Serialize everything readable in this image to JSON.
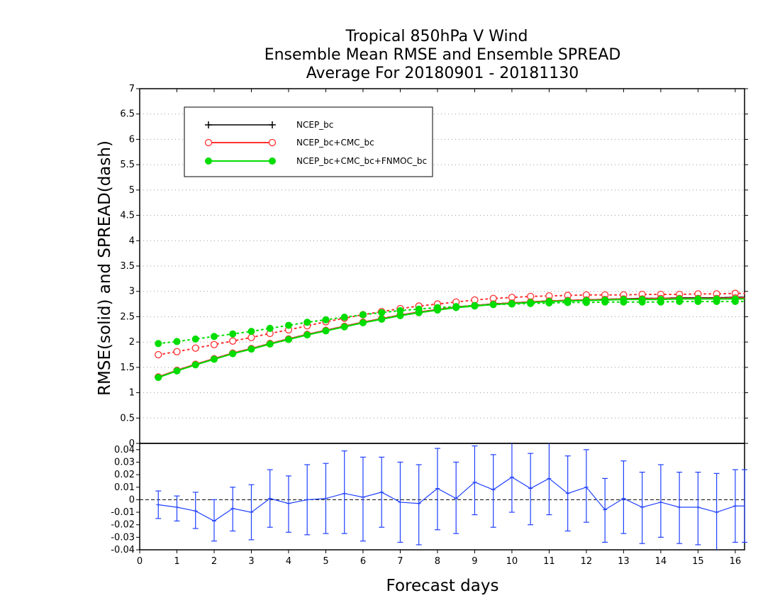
{
  "chart_data": [
    {
      "type": "line",
      "title_lines": [
        "Tropical 850hPa V Wind",
        "Ensemble Mean RMSE and Ensemble SPREAD",
        "Average For 20180901 - 20181130"
      ],
      "ylabel": "RMSE(solid)  and  SPREAD(dash)",
      "xlabel": "Forecast days",
      "xlim": [
        0,
        16.25
      ],
      "ylim": [
        0,
        7
      ],
      "x_ticks": [
        0,
        1,
        2,
        3,
        4,
        5,
        6,
        7,
        8,
        9,
        10,
        11,
        12,
        13,
        14,
        15,
        16
      ],
      "y_ticks": [
        0,
        0.5,
        1,
        1.5,
        2,
        2.5,
        3,
        3.5,
        4,
        4.5,
        5,
        5.5,
        6,
        6.5,
        7
      ],
      "y_tick_labels": [
        "0",
        "0.5",
        "1",
        "1.5",
        "2",
        "2.5",
        "3",
        "3.5",
        "4",
        "4.5",
        "5",
        "5.5",
        "6",
        "6.5",
        "7"
      ],
      "grid": true,
      "legend_position": "top-left",
      "x": [
        0.5,
        1,
        1.5,
        2,
        2.5,
        3,
        3.5,
        4,
        4.5,
        5,
        5.5,
        6,
        6.5,
        7,
        7.5,
        8,
        8.5,
        9,
        9.5,
        10,
        10.5,
        11,
        11.5,
        12,
        12.5,
        13,
        13.5,
        14,
        14.5,
        15,
        15.5,
        16,
        16.25
      ],
      "series": [
        {
          "name": "NCEP_bc",
          "color": "#000000",
          "marker": "plus",
          "rmse": [
            1.31,
            1.44,
            1.56,
            1.67,
            1.78,
            1.87,
            1.97,
            2.06,
            2.15,
            2.23,
            2.31,
            2.39,
            2.46,
            2.53,
            2.59,
            2.64,
            2.69,
            2.72,
            2.75,
            2.77,
            2.79,
            2.81,
            2.82,
            2.83,
            2.84,
            2.85,
            2.86,
            2.86,
            2.87,
            2.87,
            2.87,
            2.88,
            2.88
          ],
          "spread": [
            1.31,
            1.44,
            1.56,
            1.67,
            1.78,
            1.87,
            1.97,
            2.06,
            2.15,
            2.23,
            2.31,
            2.39,
            2.46,
            2.53,
            2.59,
            2.64,
            2.69,
            2.72,
            2.75,
            2.77,
            2.79,
            2.81,
            2.82,
            2.83,
            2.84,
            2.85,
            2.86,
            2.86,
            2.87,
            2.87,
            2.87,
            2.88,
            2.88
          ]
        },
        {
          "name": "NCEP_bc+CMC_bc",
          "color": "#ff3030",
          "marker": "open-circle",
          "rmse": [
            1.31,
            1.44,
            1.56,
            1.67,
            1.78,
            1.87,
            1.97,
            2.06,
            2.15,
            2.23,
            2.31,
            2.39,
            2.46,
            2.53,
            2.59,
            2.64,
            2.69,
            2.72,
            2.75,
            2.77,
            2.79,
            2.81,
            2.82,
            2.83,
            2.84,
            2.85,
            2.85,
            2.86,
            2.86,
            2.86,
            2.86,
            2.87,
            2.87
          ],
          "spread": [
            1.75,
            1.81,
            1.88,
            1.95,
            2.02,
            2.09,
            2.17,
            2.24,
            2.32,
            2.4,
            2.47,
            2.54,
            2.6,
            2.66,
            2.71,
            2.75,
            2.79,
            2.83,
            2.86,
            2.88,
            2.9,
            2.91,
            2.92,
            2.93,
            2.93,
            2.93,
            2.94,
            2.94,
            2.94,
            2.95,
            2.95,
            2.96,
            2.96
          ]
        },
        {
          "name": "NCEP_bc+CMC_bc+FNMOC_bc",
          "color": "#00dd00",
          "marker": "filled-circle",
          "rmse": [
            1.3,
            1.43,
            1.55,
            1.66,
            1.77,
            1.86,
            1.96,
            2.05,
            2.14,
            2.22,
            2.3,
            2.38,
            2.45,
            2.52,
            2.58,
            2.63,
            2.68,
            2.71,
            2.74,
            2.76,
            2.78,
            2.8,
            2.81,
            2.82,
            2.83,
            2.84,
            2.84,
            2.84,
            2.85,
            2.85,
            2.85,
            2.85,
            2.85
          ],
          "spread": [
            1.97,
            2.01,
            2.06,
            2.11,
            2.16,
            2.21,
            2.27,
            2.33,
            2.39,
            2.44,
            2.49,
            2.54,
            2.58,
            2.62,
            2.65,
            2.68,
            2.7,
            2.72,
            2.74,
            2.75,
            2.76,
            2.77,
            2.78,
            2.78,
            2.79,
            2.79,
            2.79,
            2.79,
            2.8,
            2.8,
            2.8,
            2.8,
            2.8
          ]
        }
      ]
    },
    {
      "type": "line",
      "description": "difference panel with error bars",
      "xlim": [
        0,
        16.25
      ],
      "ylim": [
        -0.04,
        0.045
      ],
      "y_ticks": [
        -0.04,
        -0.03,
        -0.02,
        -0.01,
        0,
        0.01,
        0.02,
        0.03,
        0.04
      ],
      "y_tick_labels": [
        "-0.04",
        "-0.03",
        "-0.02",
        "-0.01",
        "0",
        "0.01",
        "0.02",
        "0.03",
        "0.04"
      ],
      "zero_line": true,
      "color": "#2040ff",
      "x": [
        0.5,
        1,
        1.5,
        2,
        2.5,
        3,
        3.5,
        4,
        4.5,
        5,
        5.5,
        6,
        6.5,
        7,
        7.5,
        8,
        8.5,
        9,
        9.5,
        10,
        10.5,
        11,
        11.5,
        12,
        12.5,
        13,
        13.5,
        14,
        14.5,
        15,
        15.5,
        16,
        16.25
      ],
      "values": [
        -0.004,
        -0.006,
        -0.009,
        -0.017,
        -0.007,
        -0.01,
        0.001,
        -0.003,
        0.0,
        0.001,
        0.005,
        0.002,
        0.006,
        -0.002,
        -0.003,
        0.009,
        0.001,
        0.014,
        0.008,
        0.018,
        0.009,
        0.017,
        0.005,
        0.01,
        -0.008,
        0.001,
        -0.006,
        -0.002,
        -0.006,
        -0.006,
        -0.01,
        -0.005,
        -0.005
      ],
      "err_low": [
        -0.015,
        -0.017,
        -0.023,
        -0.033,
        -0.025,
        -0.032,
        -0.022,
        -0.026,
        -0.028,
        -0.027,
        -0.027,
        -0.033,
        -0.022,
        -0.034,
        -0.036,
        -0.024,
        -0.027,
        -0.012,
        -0.022,
        -0.01,
        -0.02,
        -0.012,
        -0.025,
        -0.018,
        -0.034,
        -0.027,
        -0.035,
        -0.03,
        -0.035,
        -0.036,
        -0.041,
        -0.034,
        -0.034
      ],
      "err_high": [
        0.007,
        0.003,
        0.006,
        0.0,
        0.01,
        0.012,
        0.024,
        0.019,
        0.028,
        0.029,
        0.039,
        0.034,
        0.034,
        0.03,
        0.028,
        0.041,
        0.03,
        0.043,
        0.036,
        0.046,
        0.037,
        0.046,
        0.035,
        0.04,
        0.017,
        0.031,
        0.022,
        0.028,
        0.022,
        0.022,
        0.021,
        0.024,
        0.024
      ]
    }
  ],
  "x_tick_labels": [
    "0",
    "1",
    "2",
    "3",
    "4",
    "5",
    "6",
    "7",
    "8",
    "9",
    "10",
    "11",
    "12",
    "13",
    "14",
    "15",
    "16"
  ]
}
